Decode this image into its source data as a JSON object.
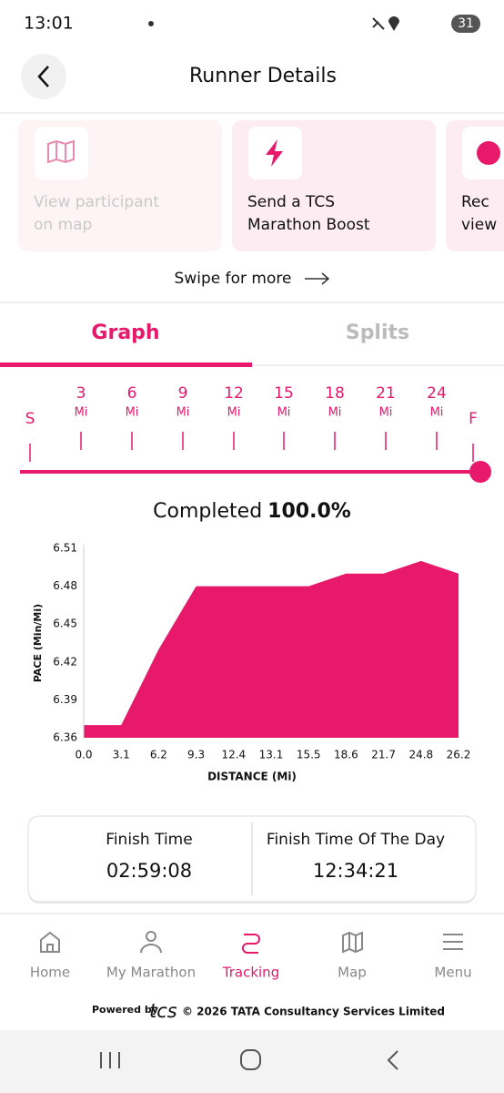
{
  "status_bar": {
    "time": "13:01",
    "battery": "31"
  },
  "header": {
    "title": "Runner Details"
  },
  "cards": [
    {
      "lines": [
        "View participant",
        "on map"
      ]
    },
    {
      "lines": [
        "Send a TCS",
        "Marathon Boost"
      ]
    },
    {
      "lines": [
        "Rec",
        "view"
      ]
    }
  ],
  "swipe": "Swipe for more",
  "tabs": {
    "items": [
      "Graph",
      "Splits"
    ],
    "active": 0
  },
  "progress": {
    "start": "S",
    "end": "F",
    "unit": "Mi",
    "marks": [
      "3",
      "6",
      "9",
      "12",
      "15",
      "18",
      "21",
      "24"
    ]
  },
  "completed": {
    "label": "Completed",
    "value": "100.0%"
  },
  "chart_data": {
    "type": "area",
    "x_label": "DISTANCE (Mi)",
    "y_label": "PACE (Min/Mi)",
    "categories": [
      "0.0",
      "3.1",
      "6.2",
      "9.3",
      "12.4",
      "13.1",
      "15.5",
      "18.6",
      "21.7",
      "24.8",
      "26.2"
    ],
    "values": [
      6.37,
      6.37,
      6.43,
      6.48,
      6.48,
      6.48,
      6.48,
      6.49,
      6.49,
      6.5,
      6.49
    ],
    "color": "#e8196b",
    "ylim": [
      6.36,
      6.51
    ],
    "yticks": [
      6.36,
      6.39,
      6.42,
      6.45,
      6.48,
      6.51
    ],
    "grid": false
  },
  "finish": [
    {
      "label": "Finish Time",
      "value": "02:59:08"
    },
    {
      "label": "Finish Time Of The Day",
      "value": "12:34:21"
    }
  ],
  "nav": {
    "items": [
      "Home",
      "My Marathon",
      "Tracking",
      "Map",
      "Menu"
    ],
    "active": 2
  },
  "footer": {
    "powered": "Powered by",
    "logo": "tcs",
    "copyright": "© 2026 TATA Consultancy Services Limited"
  }
}
